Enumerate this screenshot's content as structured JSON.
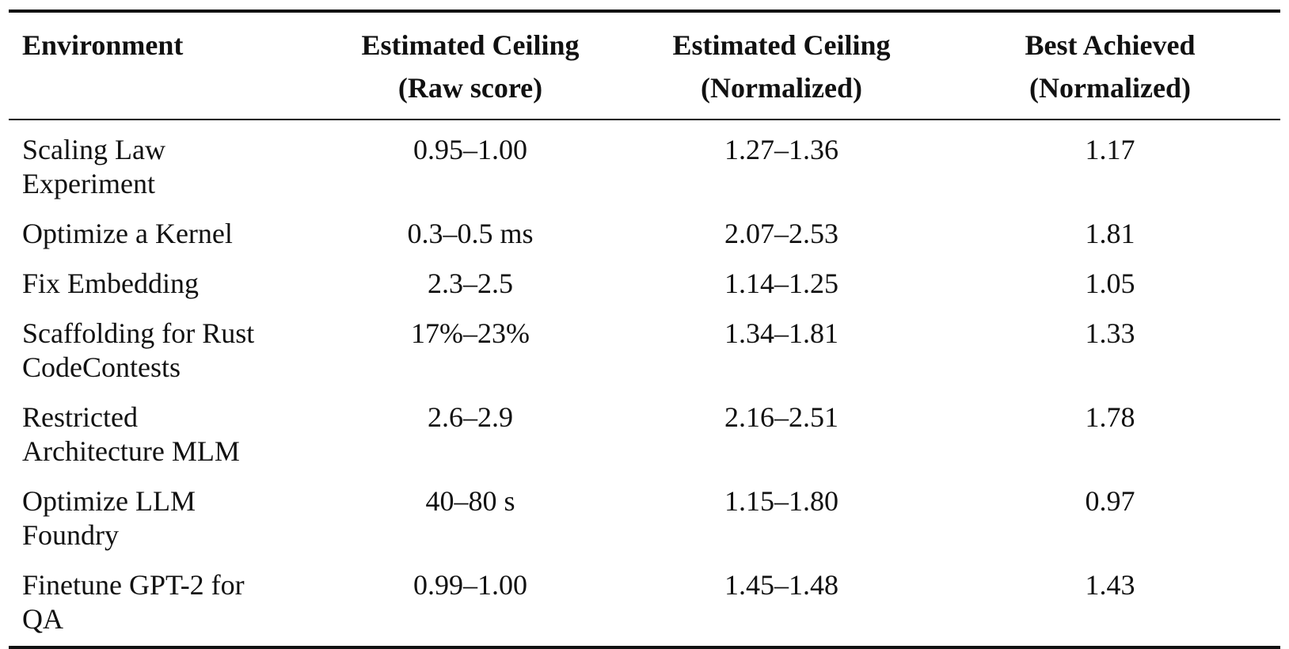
{
  "table": {
    "headers": [
      {
        "line1": "Environment",
        "line2": ""
      },
      {
        "line1": "Estimated Ceiling",
        "line2": "(Raw score)"
      },
      {
        "line1": "Estimated Ceiling",
        "line2": "(Normalized)"
      },
      {
        "line1": "Best Achieved",
        "line2": "(Normalized)"
      }
    ],
    "rows": [
      {
        "env_line1": "Scaling Law",
        "env_line2": "Experiment",
        "raw": "0.95–1.00",
        "norm": "1.27–1.36",
        "best": "1.17"
      },
      {
        "env_line1": "Optimize a Kernel",
        "env_line2": "",
        "raw": "0.3–0.5 ms",
        "norm": "2.07–2.53",
        "best": "1.81"
      },
      {
        "env_line1": "Fix Embedding",
        "env_line2": "",
        "raw": "2.3–2.5",
        "norm": "1.14–1.25",
        "best": "1.05"
      },
      {
        "env_line1": "Scaffolding for Rust",
        "env_line2": "CodeContests",
        "raw": "17%–23%",
        "norm": "1.34–1.81",
        "best": "1.33"
      },
      {
        "env_line1": "Restricted",
        "env_line2": "Architecture MLM",
        "raw": "2.6–2.9",
        "norm": "2.16–2.51",
        "best": "1.78"
      },
      {
        "env_line1": "Optimize LLM",
        "env_line2": "Foundry",
        "raw": "40–80 s",
        "norm": "1.15–1.80",
        "best": "0.97"
      },
      {
        "env_line1": "Finetune GPT-2 for",
        "env_line2": "QA",
        "raw": "0.99–1.00",
        "norm": "1.45–1.48",
        "best": "1.43"
      }
    ]
  }
}
